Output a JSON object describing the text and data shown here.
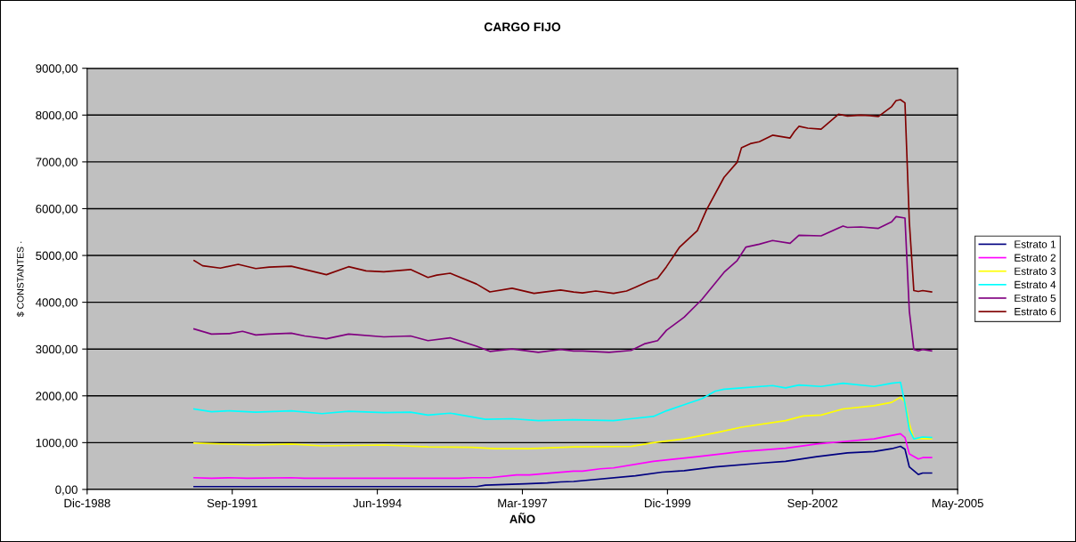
{
  "chart_data": {
    "type": "line",
    "title": "CARGO FIJO",
    "xlabel": "AÑO",
    "ylabel": "$ CONSTANTES ·",
    "xlim": [
      "1988-12-25",
      "2005-05-30"
    ],
    "xticks": [
      {
        "value": "1988-12-25",
        "label": "Dic-1988"
      },
      {
        "value": "1991-09-21",
        "label": "Sep-1991"
      },
      {
        "value": "1994-06-17",
        "label": "Jun-1994"
      },
      {
        "value": "1997-03-13",
        "label": "Mar-1997"
      },
      {
        "value": "1999-12-08",
        "label": "Dic-1999"
      },
      {
        "value": "2002-09-03",
        "label": "Sep-2002"
      },
      {
        "value": "2005-05-30",
        "label": "May-2005"
      }
    ],
    "ylim": [
      0,
      9000
    ],
    "yticks": [
      {
        "value": 0,
        "label": "0,00"
      },
      {
        "value": 1000,
        "label": "1000,00"
      },
      {
        "value": 2000,
        "label": "2000,00"
      },
      {
        "value": 3000,
        "label": "3000,00"
      },
      {
        "value": 4000,
        "label": "4000,00"
      },
      {
        "value": 5000,
        "label": "5000,00"
      },
      {
        "value": 6000,
        "label": "6000,00"
      },
      {
        "value": 7000,
        "label": "7000,00"
      },
      {
        "value": 8000,
        "label": "8000,00"
      },
      {
        "value": 9000,
        "label": "9000,00"
      }
    ],
    "grid": "y",
    "legend": "right",
    "line_style": "solid",
    "series": [
      {
        "name": "Estrato 1",
        "color": "#000080",
        "x": [
          "1991-01",
          "1996-05",
          "1996-07",
          "1997-01",
          "1997-04",
          "1997-09",
          "1997-12",
          "1998-03",
          "1999-05",
          "1999-11",
          "2000-04",
          "2000-11",
          "2001-09",
          "2002-03",
          "2002-10",
          "2003-05",
          "2003-11",
          "2004-03",
          "2004-05",
          "2004-06",
          "2004-07",
          "2004-09",
          "2004-10",
          "2004-12"
        ],
        "values": [
          60,
          60,
          90,
          110,
          120,
          140,
          160,
          170,
          290,
          370,
          400,
          480,
          560,
          600,
          700,
          780,
          810,
          870,
          920,
          860,
          480,
          320,
          350,
          350
        ]
      },
      {
        "name": "Estrato 2",
        "color": "#ff00ff",
        "x": [
          "1991-01",
          "1991-05",
          "1991-09",
          "1992-01",
          "1992-11",
          "1993-02",
          "1996-01",
          "1996-04",
          "1996-08",
          "1997-02",
          "1997-05",
          "1998-03",
          "1998-05",
          "1998-09",
          "1998-12",
          "1999-09",
          "2000-07",
          "2001-05",
          "2002-03",
          "2002-10",
          "2003-05",
          "2003-11",
          "2004-05",
          "2004-06",
          "2004-07",
          "2004-09",
          "2004-10",
          "2004-12"
        ],
        "values": [
          250,
          240,
          250,
          240,
          250,
          240,
          240,
          250,
          250,
          310,
          310,
          390,
          390,
          440,
          460,
          600,
          700,
          810,
          880,
          970,
          1030,
          1080,
          1190,
          1110,
          760,
          650,
          680,
          680
        ]
      },
      {
        "name": "Estrato 3",
        "color": "#ffff00",
        "x": [
          "1991-01",
          "1992-03",
          "1992-11",
          "1993-06",
          "1994-08",
          "1995-06",
          "1996-04",
          "1996-09",
          "1997-05",
          "1998-03",
          "1999-04",
          "1999-09",
          "2000-04",
          "2000-11",
          "2001-05",
          "2002-03",
          "2002-07",
          "2002-11",
          "2003-04",
          "2003-11",
          "2004-03",
          "2004-05",
          "2004-06",
          "2004-07",
          "2004-08",
          "2004-12"
        ],
        "values": [
          990,
          950,
          970,
          930,
          950,
          910,
          900,
          870,
          870,
          910,
          920,
          1000,
          1080,
          1210,
          1330,
          1470,
          1570,
          1590,
          1720,
          1790,
          1860,
          1970,
          1870,
          1400,
          1090,
          1080
        ]
      },
      {
        "name": "Estrato 4",
        "color": "#00ffff",
        "x": [
          "1991-01",
          "1991-05",
          "1991-09",
          "1992-03",
          "1992-11",
          "1993-06",
          "1993-12",
          "1994-08",
          "1995-02",
          "1995-06",
          "1995-11",
          "1996-07",
          "1997-01",
          "1997-07",
          "1998-03",
          "1998-12",
          "1999-04",
          "1999-09",
          "1999-12",
          "2000-04",
          "2000-08",
          "2000-11",
          "2001-01",
          "2001-05",
          "2001-12",
          "2002-03",
          "2002-06",
          "2002-11",
          "2003-04",
          "2003-11",
          "2004-03",
          "2004-05",
          "2004-06",
          "2004-07",
          "2004-08",
          "2004-10",
          "2004-12"
        ],
        "values": [
          1720,
          1660,
          1680,
          1650,
          1680,
          1620,
          1670,
          1640,
          1650,
          1590,
          1630,
          1500,
          1510,
          1470,
          1490,
          1470,
          1510,
          1560,
          1680,
          1810,
          1940,
          2100,
          2140,
          2170,
          2220,
          2170,
          2230,
          2200,
          2270,
          2200,
          2270,
          2290,
          1840,
          1270,
          1080,
          1120,
          1110
        ]
      },
      {
        "name": "Estrato 5",
        "color": "#800080",
        "x": [
          "1991-01",
          "1991-05",
          "1991-09",
          "1991-12",
          "1992-03",
          "1992-06",
          "1992-11",
          "1993-02",
          "1993-07",
          "1993-12",
          "1994-08",
          "1995-02",
          "1995-06",
          "1995-11",
          "1996-05",
          "1996-08",
          "1997-01",
          "1997-07",
          "1997-12",
          "1998-03",
          "1998-05",
          "1998-11",
          "1999-04",
          "1999-07",
          "1999-10",
          "1999-12",
          "2000-04",
          "2000-08",
          "2001-01",
          "2001-04",
          "2001-06",
          "2001-09",
          "2001-12",
          "2002-04",
          "2002-06",
          "2002-11",
          "2003-04",
          "2003-05",
          "2003-08",
          "2003-12",
          "2004-03",
          "2004-04",
          "2004-06",
          "2004-07",
          "2004-08",
          "2004-09",
          "2004-10",
          "2004-12"
        ],
        "values": [
          3430,
          3320,
          3330,
          3380,
          3300,
          3320,
          3340,
          3280,
          3220,
          3320,
          3260,
          3280,
          3180,
          3240,
          3060,
          2950,
          3000,
          2930,
          2990,
          2960,
          2960,
          2930,
          2970,
          3110,
          3180,
          3400,
          3680,
          4060,
          4640,
          4890,
          5180,
          5240,
          5320,
          5260,
          5430,
          5420,
          5630,
          5600,
          5610,
          5580,
          5720,
          5830,
          5800,
          3810,
          2990,
          2960,
          2990,
          2960
        ]
      },
      {
        "name": "Estrato 6",
        "color": "#800000",
        "x": [
          "1991-01",
          "1991-03",
          "1991-07",
          "1991-11",
          "1992-03",
          "1992-06",
          "1992-11",
          "1993-07",
          "1993-12",
          "1994-04",
          "1994-08",
          "1995-02",
          "1995-06",
          "1995-08",
          "1995-11",
          "1996-05",
          "1996-08",
          "1997-01",
          "1997-06",
          "1997-12",
          "1998-03",
          "1998-05",
          "1998-08",
          "1998-12",
          "1999-03",
          "1999-05",
          "1999-08",
          "1999-10",
          "1999-12",
          "2000-03",
          "2000-07",
          "2000-09",
          "2001-01",
          "2001-04",
          "2001-05",
          "2001-07",
          "2001-09",
          "2001-12",
          "2002-04",
          "2002-05",
          "2002-06",
          "2002-08",
          "2002-11",
          "2003-03",
          "2003-05",
          "2003-08",
          "2003-10",
          "2003-12",
          "2004-03",
          "2004-04",
          "2004-05",
          "2004-06",
          "2004-07",
          "2004-08",
          "2004-09",
          "2004-10",
          "2004-12"
        ],
        "values": [
          4890,
          4780,
          4730,
          4810,
          4720,
          4750,
          4770,
          4590,
          4760,
          4670,
          4650,
          4700,
          4530,
          4580,
          4620,
          4390,
          4220,
          4300,
          4190,
          4260,
          4220,
          4200,
          4240,
          4190,
          4240,
          4320,
          4450,
          4510,
          4760,
          5180,
          5530,
          5970,
          6670,
          6990,
          7300,
          7390,
          7430,
          7570,
          7510,
          7650,
          7760,
          7720,
          7700,
          8020,
          7980,
          8000,
          7990,
          7970,
          8180,
          8310,
          8330,
          8260,
          5720,
          4250,
          4230,
          4250,
          4220
        ]
      }
    ]
  }
}
